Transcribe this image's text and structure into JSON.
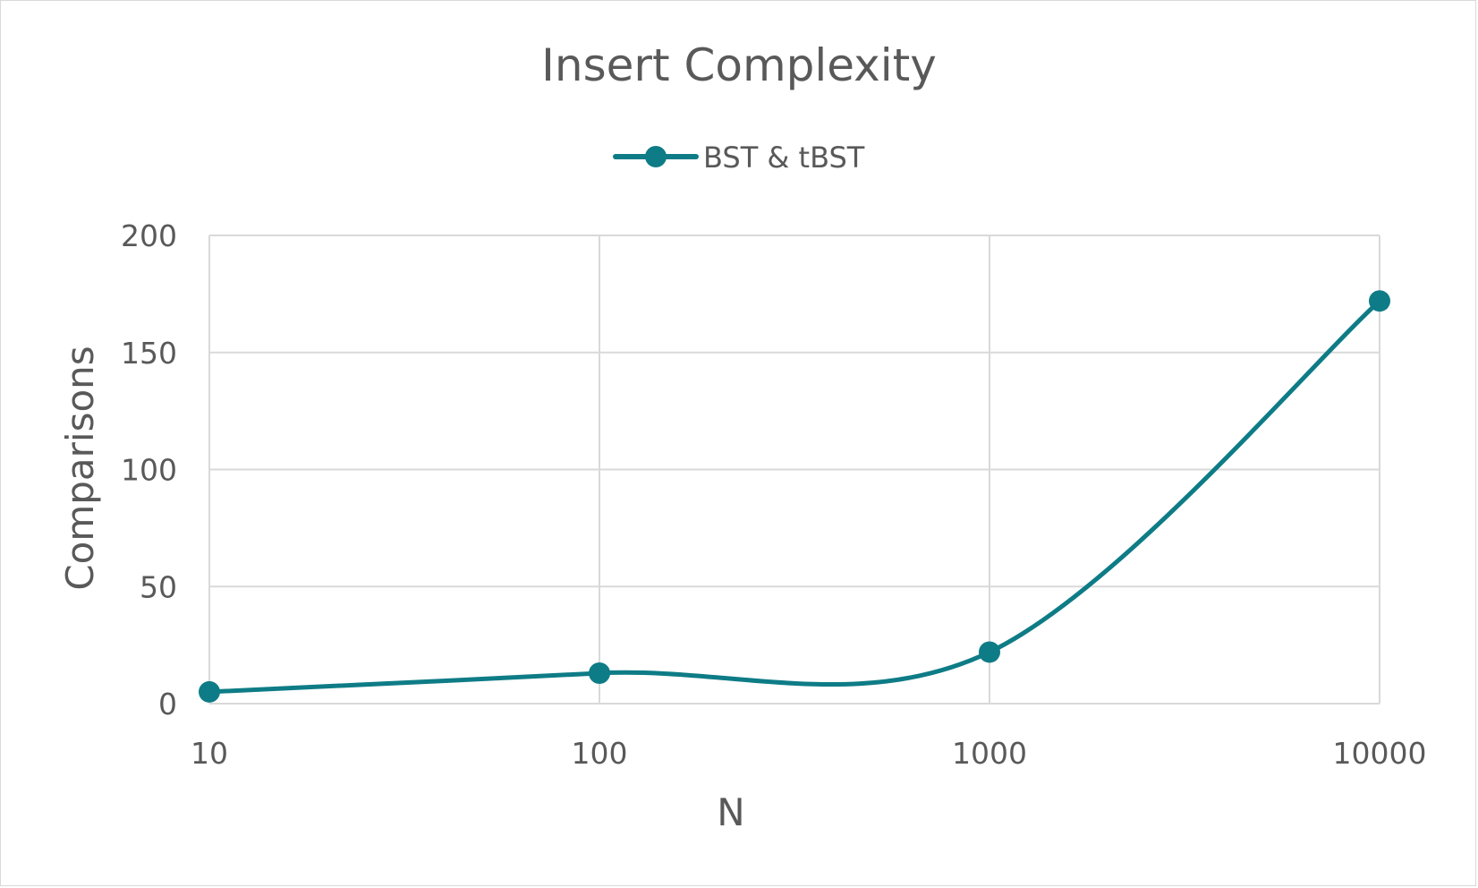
{
  "chart_data": {
    "type": "line",
    "title": "Insert Complexity",
    "xlabel": "N",
    "ylabel": "Comparisons",
    "x_scale": "log",
    "x": [
      10,
      100,
      1000,
      10000
    ],
    "x_tick_labels": [
      "10",
      "100",
      "1000",
      "10000"
    ],
    "y_ticks": [
      0,
      50,
      100,
      150,
      200
    ],
    "y_tick_labels": [
      "0",
      "50",
      "100",
      "150",
      "200"
    ],
    "ylim": [
      0,
      200
    ],
    "grid": true,
    "legend_position": "top",
    "smooth": true,
    "series": [
      {
        "name": "BST & tBST",
        "color": "#0e7c86",
        "values": [
          5,
          13,
          22,
          172
        ]
      }
    ]
  }
}
